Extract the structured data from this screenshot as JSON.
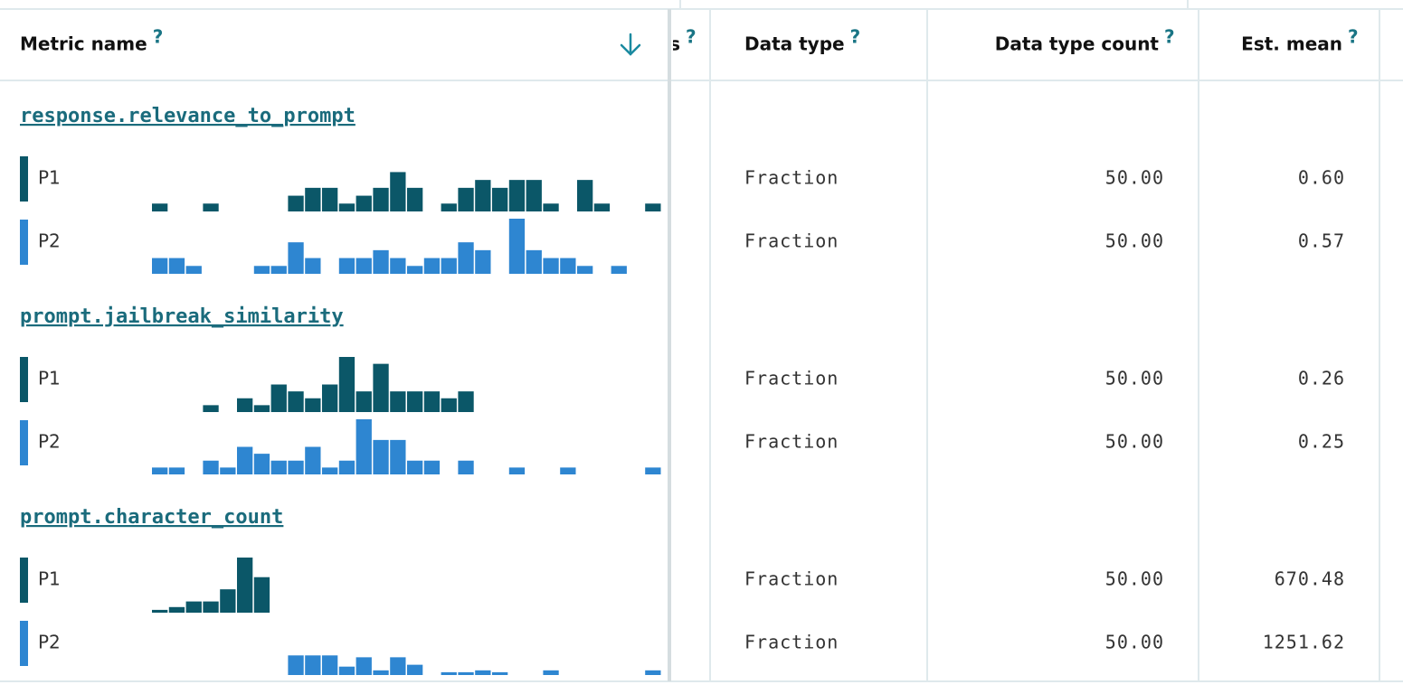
{
  "header": {
    "columns": [
      {
        "label": "Metric name",
        "help": "?"
      },
      {
        "label": "s",
        "help": "?"
      },
      {
        "label": "Data type",
        "help": "?"
      },
      {
        "label": "Data type count",
        "help": "?"
      },
      {
        "label": "Est. mean",
        "help": "?"
      }
    ]
  },
  "metrics": [
    {
      "name": "response.relevance_to_prompt",
      "profiles": [
        {
          "label": "P1",
          "color": "#0b5768",
          "histogram": [
            1,
            0,
            0,
            1,
            0,
            0,
            0,
            0,
            2,
            3,
            3,
            1,
            2,
            3,
            5,
            3,
            0,
            1,
            3,
            4,
            3,
            4,
            4,
            1,
            0,
            4,
            1,
            0,
            0,
            1
          ],
          "data_type": "Fraction",
          "data_type_count": "50.00",
          "est_mean": "0.60"
        },
        {
          "label": "P2",
          "color": "#2e86d1",
          "histogram": [
            2,
            2,
            1,
            0,
            0,
            0,
            1,
            1,
            4,
            2,
            0,
            2,
            2,
            3,
            2,
            1,
            2,
            2,
            4,
            3,
            0,
            7,
            3,
            2,
            2,
            1,
            0,
            1,
            0,
            0
          ],
          "data_type": "Fraction",
          "data_type_count": "50.00",
          "est_mean": "0.57"
        }
      ]
    },
    {
      "name": "prompt.jailbreak_similarity",
      "profiles": [
        {
          "label": "P1",
          "color": "#0b5768",
          "histogram": [
            0,
            0,
            0,
            1,
            0,
            2,
            1,
            4,
            3,
            2,
            4,
            8,
            3,
            7,
            3,
            3,
            3,
            2,
            3,
            0,
            0,
            0,
            0,
            0,
            0,
            0,
            0,
            0,
            0,
            0
          ],
          "data_type": "Fraction",
          "data_type_count": "50.00",
          "est_mean": "0.26"
        },
        {
          "label": "P2",
          "color": "#2e86d1",
          "histogram": [
            1,
            1,
            0,
            2,
            1,
            4,
            3,
            2,
            2,
            4,
            1,
            2,
            8,
            5,
            5,
            2,
            2,
            0,
            2,
            0,
            0,
            1,
            0,
            0,
            1,
            0,
            0,
            0,
            0,
            1
          ],
          "data_type": "Fraction",
          "data_type_count": "50.00",
          "est_mean": "0.25"
        }
      ]
    },
    {
      "name": "prompt.character_count",
      "profiles": [
        {
          "label": "P1",
          "color": "#0b5768",
          "histogram": [
            3,
            6,
            12,
            12,
            25,
            59,
            38,
            0,
            0,
            0,
            0,
            0,
            0,
            0,
            0,
            0,
            0,
            0,
            0,
            0,
            0,
            0,
            0,
            0,
            0,
            0,
            0,
            0,
            0,
            0
          ],
          "data_type": "Fraction",
          "data_type_count": "50.00",
          "est_mean": "670.48"
        },
        {
          "label": "P2",
          "color": "#2e86d1",
          "histogram": [
            0,
            0,
            0,
            0,
            0,
            0,
            0,
            0,
            21,
            21,
            21,
            9,
            19,
            5,
            19,
            11,
            0,
            3,
            3,
            5,
            3,
            0,
            0,
            5,
            0,
            0,
            0,
            0,
            0,
            5
          ],
          "data_type": "Fraction",
          "data_type_count": "50.00",
          "est_mean": "1251.62"
        }
      ]
    }
  ]
}
